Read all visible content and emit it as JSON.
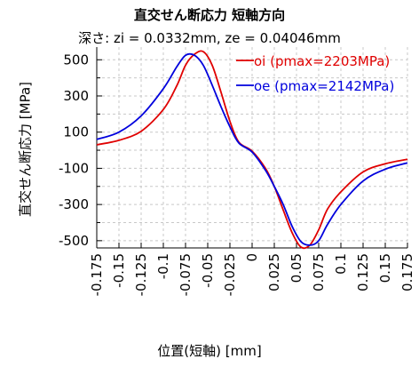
{
  "chart_data": {
    "type": "line",
    "title": "直交せん断応力 短軸方向",
    "subtitle": "深さ: zi = 0.0332mm, ze = 0.04046mm",
    "xlabel": "位置(短軸) [mm]",
    "ylabel": "直交せん断応力 [MPa]",
    "xlim": [
      -0.175,
      0.175
    ],
    "ylim": [
      -540,
      570
    ],
    "xticks": [
      "-0.175",
      "-0.15",
      "-0.125",
      "-0.1",
      "-0.075",
      "-0.05",
      "-0.025",
      "0",
      "0.025",
      "0.05",
      "0.075",
      "0.1",
      "0.125",
      "0.15",
      "0.175"
    ],
    "yticks": [
      "500",
      "300",
      "100",
      "-100",
      "-300",
      "-500"
    ],
    "grid": true,
    "legend_position": "top-right",
    "series": [
      {
        "name": "oi (pmax=2203MPa)",
        "color": "#e00000",
        "x": [
          -0.175,
          -0.15,
          -0.125,
          -0.1,
          -0.085,
          -0.075,
          -0.065,
          -0.055,
          -0.045,
          -0.035,
          -0.025,
          -0.015,
          0,
          0.015,
          0.025,
          0.035,
          0.045,
          0.055,
          0.065,
          0.075,
          0.085,
          0.1,
          0.125,
          0.15,
          0.175
        ],
        "y": [
          30,
          55,
          105,
          225,
          355,
          470,
          530,
          545,
          470,
          320,
          160,
          45,
          -5,
          -100,
          -200,
          -330,
          -455,
          -535,
          -525,
          -440,
          -325,
          -230,
          -120,
          -75,
          -50
        ]
      },
      {
        "name": "oe (pmax=2142MPa)",
        "color": "#0000dd",
        "x": [
          -0.175,
          -0.15,
          -0.125,
          -0.1,
          -0.085,
          -0.075,
          -0.065,
          -0.055,
          -0.045,
          -0.035,
          -0.025,
          -0.015,
          0,
          0.015,
          0.025,
          0.035,
          0.045,
          0.055,
          0.065,
          0.075,
          0.085,
          0.1,
          0.125,
          0.15,
          0.175
        ],
        "y": [
          60,
          100,
          190,
          340,
          460,
          525,
          525,
          470,
          360,
          240,
          130,
          40,
          -10,
          -110,
          -200,
          -300,
          -420,
          -505,
          -525,
          -500,
          -410,
          -300,
          -170,
          -105,
          -70
        ]
      }
    ]
  }
}
